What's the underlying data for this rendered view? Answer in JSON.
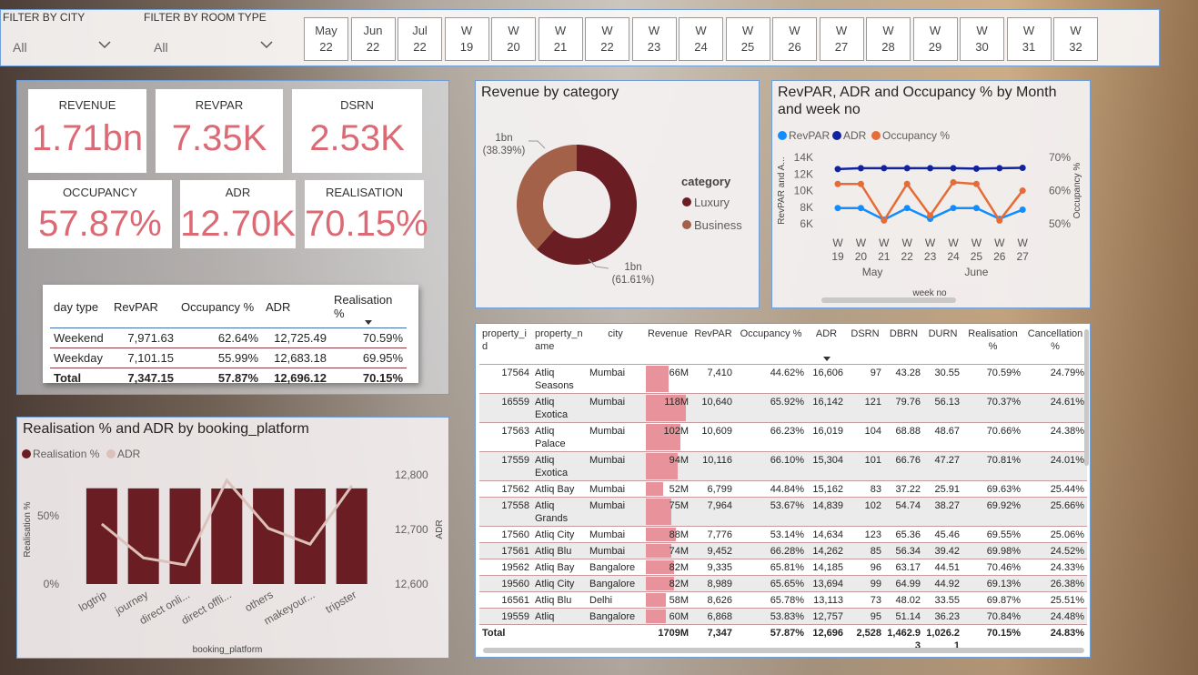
{
  "filters": [
    {
      "label": "FILTER BY CITY",
      "value": "All"
    },
    {
      "label": "FILTER BY ROOM TYPE",
      "value": "All"
    }
  ],
  "period_slicer": [
    "May 22",
    "Jun 22",
    "Jul 22",
    "W 19",
    "W 20",
    "W 21",
    "W 22",
    "W 23",
    "W 24",
    "W 25",
    "W 26",
    "W 27",
    "W 28",
    "W 29",
    "W 30",
    "W 31",
    "W 32"
  ],
  "kpis": [
    {
      "label": "REVENUE",
      "value": "1.71bn"
    },
    {
      "label": "REVPAR",
      "value": "7.35K"
    },
    {
      "label": "DSRN",
      "value": "2.53K"
    },
    {
      "label": "OCCUPANCY",
      "value": "57.87%"
    },
    {
      "label": "ADR",
      "value": "12.70K"
    },
    {
      "label": "REALISATION",
      "value": "70.15%"
    }
  ],
  "day_type_table": {
    "headers": [
      "day type",
      "RevPAR",
      "Occupancy %",
      "ADR",
      "Realisation %"
    ],
    "rows": [
      [
        "Weekend",
        "7,971.63",
        "62.64%",
        "12,725.49",
        "70.59%"
      ],
      [
        "Weekday",
        "7,101.15",
        "55.99%",
        "12,683.18",
        "69.95%"
      ]
    ],
    "total": [
      "Total",
      "7,347.15",
      "57.87%",
      "12,696.12",
      "70.15%"
    ]
  },
  "property_table": {
    "headers": [
      "property_id",
      "property_name",
      "city",
      "Revenue",
      "RevPAR",
      "Occupancy %",
      "ADR",
      "DSRN",
      "DBRN",
      "DURN",
      "Realisation %",
      "Cancellation %"
    ],
    "rows": [
      [
        "17564",
        "Atliq Seasons",
        "Mumbai",
        "66M",
        "7,410",
        "44.62%",
        "16,606",
        "97",
        "43.28",
        "30.55",
        "70.59%",
        "24.79%"
      ],
      [
        "16559",
        "Atliq Exotica",
        "Mumbai",
        "118M",
        "10,640",
        "65.92%",
        "16,142",
        "121",
        "79.76",
        "56.13",
        "70.37%",
        "24.61%"
      ],
      [
        "17563",
        "Atliq Palace",
        "Mumbai",
        "102M",
        "10,609",
        "66.23%",
        "16,019",
        "104",
        "68.88",
        "48.67",
        "70.66%",
        "24.38%"
      ],
      [
        "17559",
        "Atliq Exotica",
        "Mumbai",
        "94M",
        "10,116",
        "66.10%",
        "15,304",
        "101",
        "66.76",
        "47.27",
        "70.81%",
        "24.01%"
      ],
      [
        "17562",
        "Atliq Bay",
        "Mumbai",
        "52M",
        "6,799",
        "44.84%",
        "15,162",
        "83",
        "37.22",
        "25.91",
        "69.63%",
        "25.44%"
      ],
      [
        "17558",
        "Atliq Grands",
        "Mumbai",
        "75M",
        "7,964",
        "53.67%",
        "14,839",
        "102",
        "54.74",
        "38.27",
        "69.92%",
        "25.66%"
      ],
      [
        "17560",
        "Atliq City",
        "Mumbai",
        "88M",
        "7,776",
        "53.14%",
        "14,634",
        "123",
        "65.36",
        "45.46",
        "69.55%",
        "25.06%"
      ],
      [
        "17561",
        "Atliq Blu",
        "Mumbai",
        "74M",
        "9,452",
        "66.28%",
        "14,262",
        "85",
        "56.34",
        "39.42",
        "69.98%",
        "24.52%"
      ],
      [
        "19562",
        "Atliq Bay",
        "Bangalore",
        "82M",
        "9,335",
        "65.81%",
        "14,185",
        "96",
        "63.17",
        "44.51",
        "70.46%",
        "24.33%"
      ],
      [
        "19560",
        "Atliq City",
        "Bangalore",
        "82M",
        "8,989",
        "65.65%",
        "13,694",
        "99",
        "64.99",
        "44.92",
        "69.13%",
        "26.38%"
      ],
      [
        "16561",
        "Atliq Blu",
        "Delhi",
        "58M",
        "8,626",
        "65.78%",
        "13,113",
        "73",
        "48.02",
        "33.55",
        "69.87%",
        "25.51%"
      ],
      [
        "19559",
        "Atliq",
        "Bangalore",
        "60M",
        "6,868",
        "53.83%",
        "12,757",
        "95",
        "51.14",
        "36.23",
        "70.84%",
        "24.48%"
      ]
    ],
    "revenue_values": [
      66,
      118,
      102,
      94,
      52,
      75,
      88,
      74,
      82,
      82,
      58,
      60
    ],
    "total": [
      "Total",
      "",
      "",
      "1709M",
      "7,347",
      "57.87%",
      "12,696",
      "2,528",
      "1,462.93",
      "1,026.21",
      "70.15%",
      "24.83%"
    ]
  },
  "chart_data": [
    {
      "type": "pie",
      "title": "Revenue by category",
      "legend_title": "category",
      "categories": [
        "Luxury",
        "Business"
      ],
      "values": [
        61.61,
        38.39
      ],
      "value_labels": [
        "1bn (61.61%)",
        "1bn (38.39%)"
      ],
      "colors": [
        "#6b1d24",
        "#a3614a"
      ]
    },
    {
      "type": "line",
      "title": "RevPAR, ADR and Occupancy % by Month and week no",
      "categories": [
        "W 19",
        "W 20",
        "W 21",
        "W 22",
        "W 23",
        "W 24",
        "W 25",
        "W 26",
        "W 27"
      ],
      "x_groups": [
        {
          "label": "May",
          "span": 4
        },
        {
          "label": "June",
          "span": 5
        }
      ],
      "x_label": "week no",
      "y_label": "RevPAR and A...",
      "y2_label": "Occupancy %",
      "ylim": [
        5500,
        14500
      ],
      "yticks": [
        {
          "value": 6000,
          "label": "6K"
        },
        {
          "value": 8000,
          "label": "8K"
        },
        {
          "value": 10000,
          "label": "10K"
        },
        {
          "value": 12000,
          "label": "12K"
        },
        {
          "value": 14000,
          "label": "14K"
        }
      ],
      "y2lim": [
        48.75,
        71.25
      ],
      "y2ticks": [
        {
          "value": 50,
          "label": "50%"
        },
        {
          "value": 60,
          "label": "60%"
        },
        {
          "value": 70,
          "label": "70%"
        }
      ],
      "series": [
        {
          "name": "RevPAR",
          "color": "#118dff",
          "values": [
            7900,
            7900,
            6500,
            7900,
            6600,
            7900,
            7900,
            6600,
            7700
          ]
        },
        {
          "name": "ADR",
          "color": "#12239e",
          "values": [
            12600,
            12700,
            12700,
            12700,
            12700,
            12700,
            12650,
            12700,
            12750
          ]
        },
        {
          "name": "Occupancy %",
          "color": "#e66c37",
          "axis": "y2",
          "values": [
            62,
            62,
            51,
            62,
            52.5,
            62.5,
            62,
            51,
            60
          ]
        }
      ]
    },
    {
      "type": "combo",
      "title": "Realisation % and ADR by booking_platform",
      "categories": [
        "logtrip",
        "journey",
        "direct onli...",
        "direct offli...",
        "others",
        "makeyour...",
        "tripster"
      ],
      "x_label": "booking_platform",
      "y_label": "Realisation %",
      "y2_label": "ADR",
      "ylim": [
        0,
        80
      ],
      "yticks": [
        {
          "value": 0,
          "label": "0%"
        },
        {
          "value": 50,
          "label": "50%"
        }
      ],
      "y2lim": [
        12600,
        12800
      ],
      "y2ticks": [
        {
          "value": 12600,
          "label": "12,600"
        },
        {
          "value": 12700,
          "label": "12,700"
        },
        {
          "value": 12800,
          "label": "12,800"
        }
      ],
      "series": [
        {
          "name": "Realisation %",
          "color": "#6b1d24",
          "values": [
            70.2,
            70.1,
            70.1,
            70.0,
            70.1,
            70.0,
            70.1
          ]
        },
        {
          "name": "ADR",
          "color": "#dcc1ba",
          "axis": "y2",
          "values": [
            12710,
            12648,
            12635,
            12790,
            12702,
            12673,
            12780
          ]
        }
      ]
    }
  ]
}
